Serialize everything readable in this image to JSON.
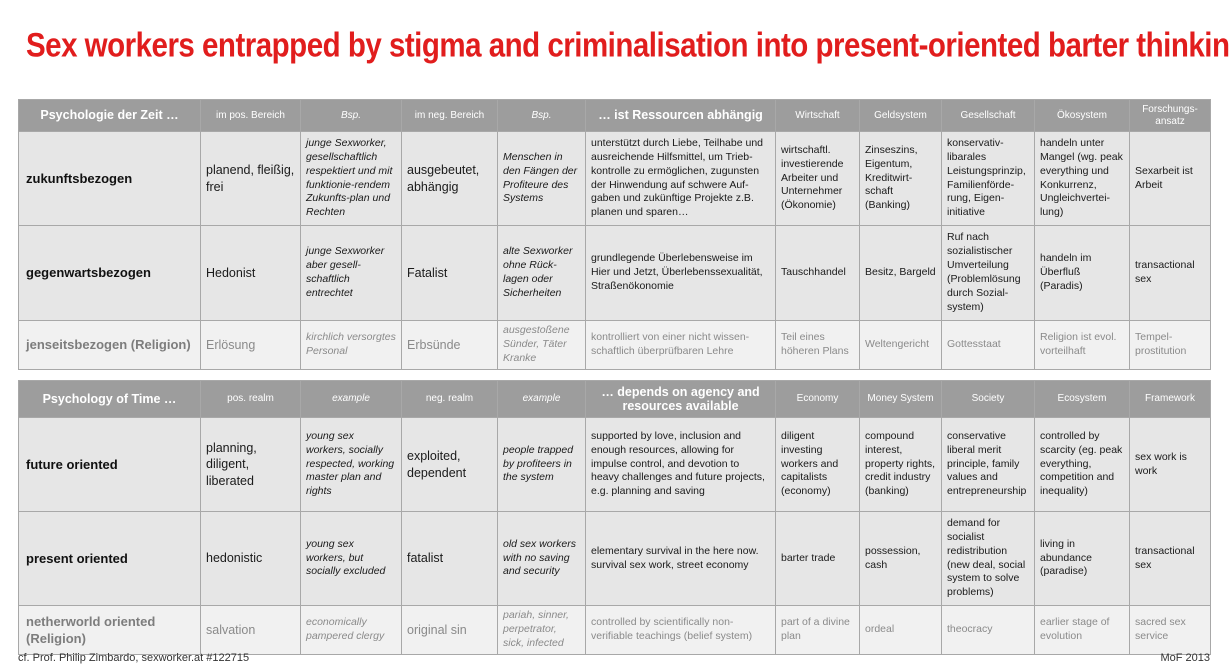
{
  "title": "Sex workers entrapped by stigma and criminalisation into present-oriented barter thinking",
  "german": {
    "headers": [
      "Psychologie der Zeit …",
      "im pos. Bereich",
      "Bsp.",
      "im neg. Bereich",
      "Bsp.",
      "… ist Ressourcen abhängig",
      "Wirtschaft",
      "Geldsystem",
      "Gesellschaft",
      "Ökosystem",
      "Forschungs-ansatz"
    ],
    "rows": [
      [
        "zukunftsbezogen",
        "planend, fleißig, frei",
        "junge Sexworker, gesellschaftlich respektiert und mit funktionie-rendem Zukunfts-plan und Rechten",
        "ausgebeutet, abhängig",
        "Menschen in den Fängen der Profiteure des Systems",
        "unterstützt durch Liebe, Teilhabe und ausreichende Hilfsmittel, um Trieb-kontrolle zu ermöglichen, zugunsten der Hinwendung auf schwere Auf-gaben und zukünftige Projekte z.B. planen und sparen…",
        "wirtschaftl. investierende Arbeiter und Unternehmer (Ökonomie)",
        "Zinseszins, Eigentum, Kreditwirt-schaft (Banking)",
        "konservativ-libarales Leistungsprinzip, Familienförde-rung, Eigen-initiative",
        "handeln unter Mangel (wg. peak everything und Konkurrenz, Ungleichvertei-lung)",
        "Sexarbeit ist Arbeit"
      ],
      [
        "gegenwartsbezogen",
        "Hedonist",
        "junge Sexworker aber gesell-schaftlich entrechtet",
        "Fatalist",
        "alte Sexworker ohne Rück-lagen oder Sicherheiten",
        "grundlegende Überlebensweise im Hier und Jetzt, Überlebenssexualität, Straßenökonomie",
        "Tauschhandel",
        "Besitz, Bargeld",
        "Ruf nach sozialistischer Umverteilung (Problemlösung durch Sozial-system)",
        "handeln im Überfluß (Paradis)",
        "transactional sex"
      ],
      [
        "jenseitsbezogen (Religion)",
        "Erlösung",
        "kirchlich versorgtes Personal",
        "Erbsünde",
        "ausgestoßene Sünder, Täter Kranke",
        "kontrolliert von einer nicht wissen-schaftlich überprüfbaren Lehre",
        "Teil eines höheren Plans",
        "Weltengericht",
        "Gottesstaat",
        "Religion ist evol. vorteilhaft",
        "Tempel-prostitution"
      ]
    ]
  },
  "english": {
    "headers": [
      "Psychology of Time …",
      "pos. realm",
      "example",
      "neg. realm",
      "example",
      "… depends on agency and resources available",
      "Economy",
      "Money System",
      "Society",
      "Ecosystem",
      "Framework"
    ],
    "rows": [
      [
        "future oriented",
        "planning, diligent, liberated",
        "young sex workers, socially respected, working master plan and rights",
        "exploited, dependent",
        "people trapped by profiteers in the system",
        "supported by love, inclusion and enough resources, allowing for impulse control, and devotion to heavy challenges and future projects, e.g. planning and saving",
        "diligent investing workers and capitalists (economy)",
        "compound interest, property rights, credit industry (banking)",
        "conservative liberal merit principle, family values and entrepreneurship",
        "controlled by scarcity (eg. peak everything, competition and inequality)",
        "sex work is work"
      ],
      [
        "present oriented",
        "hedonistic",
        "young sex workers, but socially excluded",
        "fatalist",
        "old sex workers with no saving and security",
        "elementary survival in the here now. survival sex work, street economy",
        "barter trade",
        "possession, cash",
        "demand for socialist redistribution (new deal, social system to solve problems)",
        "living in abundance (paradise)",
        "transactional sex"
      ],
      [
        "netherworld oriented (Religion)",
        "salvation",
        "economically pampered clergy",
        "original sin",
        "pariah, sinner, perpetrator, sick, infected",
        "controlled by scientifically non-verifiable teachings (belief system)",
        "part of a divine plan",
        "ordeal",
        "theocracy",
        "earlier stage of evolution",
        "sacred sex service"
      ]
    ]
  },
  "footer": {
    "left": "cf. Prof. Philip Zimbardo, sexworker.at #122715",
    "right": "MoF 2013"
  }
}
